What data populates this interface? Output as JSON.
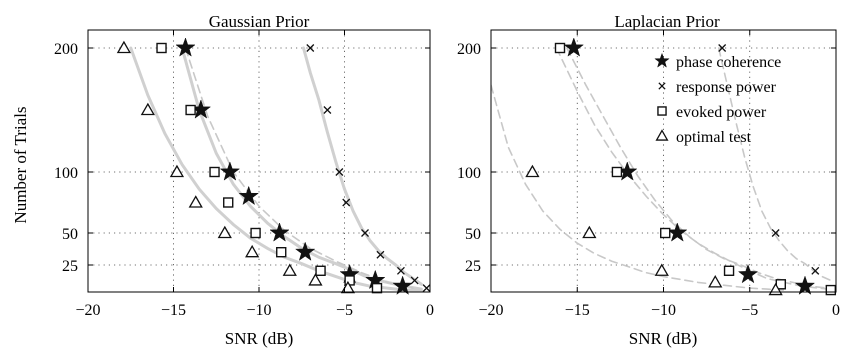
{
  "chart_data": [
    {
      "type": "scatter",
      "title": "Gaussian Prior",
      "xlabel": "SNR (dB)",
      "ylabel": "Number of Trials",
      "xlim": [
        -20,
        0
      ],
      "ylim": [
        11,
        200
      ],
      "x_ticks": [
        -20,
        -15,
        -10,
        -5,
        0
      ],
      "y_ticks": [
        25,
        50,
        100,
        200
      ],
      "grid": "dotted",
      "series": [
        {
          "name": "phase coherence",
          "marker": "star",
          "x": [
            -14.3,
            -13.4,
            -11.7,
            -10.6,
            -8.8,
            -7.3,
            -4.7,
            -3.2,
            -1.6
          ],
          "y": [
            200,
            150,
            100,
            80,
            50,
            35,
            20,
            17,
            14
          ]
        },
        {
          "name": "response power",
          "marker": "x",
          "x": [
            -7.0,
            -6.0,
            -5.3,
            -4.9,
            -3.8,
            -2.9,
            -1.7,
            -0.9,
            -0.2
          ],
          "y": [
            200,
            150,
            100,
            75,
            50,
            33,
            22,
            17,
            13
          ]
        },
        {
          "name": "evoked power",
          "marker": "square",
          "x": [
            -15.7,
            -14.0,
            -12.6,
            -11.8,
            -10.2,
            -8.7,
            -6.4,
            -4.7,
            -3.1
          ],
          "y": [
            200,
            150,
            100,
            75,
            50,
            35,
            22,
            17,
            13
          ]
        },
        {
          "name": "optimal test",
          "marker": "triangle",
          "x": [
            -17.9,
            -16.5,
            -14.8,
            -13.7,
            -12.0,
            -10.4,
            -8.2,
            -6.7,
            -4.8
          ],
          "y": [
            200,
            150,
            100,
            75,
            50,
            35,
            22,
            17,
            13
          ]
        }
      ],
      "fit_curves": [
        {
          "style": "solid",
          "color": "#d0d0d0",
          "x": [
            -17.5,
            -16.5,
            -15.5,
            -14.5,
            -13.5,
            -12.5,
            -11.5,
            -10.5,
            -9.5,
            -8.5,
            -7.5,
            -6.5,
            -5.5,
            -4.5,
            -3.5,
            -2.5,
            -1.5,
            -0.5
          ],
          "y": [
            200,
            162,
            131,
            106,
            86,
            70,
            57,
            46,
            38,
            31,
            26,
            22,
            19,
            16,
            14,
            13,
            12,
            11.5
          ]
        },
        {
          "style": "solid",
          "color": "#d0d0d0",
          "x": [
            -14.5,
            -13.5,
            -12.5,
            -11.5,
            -10.5,
            -9.5,
            -8.5,
            -7.5,
            -6.5,
            -5.5,
            -4.5,
            -3.5,
            -2.5,
            -1.5,
            -0.5
          ],
          "y": [
            200,
            150,
            115,
            90,
            72,
            58,
            47,
            38,
            31,
            26,
            22,
            18,
            16,
            14,
            12.5
          ]
        },
        {
          "style": "dashed",
          "color": "#c8c8c8",
          "x": [
            -14.3,
            -13.0,
            -11.5,
            -10.0,
            -8.5,
            -7.0,
            -5.5,
            -4.0,
            -2.5,
            -1.0
          ],
          "y": [
            200,
            145,
            100,
            72,
            52,
            38,
            28,
            21,
            16,
            13
          ]
        },
        {
          "style": "solid",
          "color": "#d0d0d0",
          "x": [
            -7.4,
            -7.0,
            -6.5,
            -6.0,
            -5.5,
            -5.0,
            -4.5,
            -4.0,
            -3.5,
            -3.0,
            -2.5,
            -2.0,
            -1.5,
            -1.0,
            -0.5
          ],
          "y": [
            200,
            180,
            158,
            132,
            108,
            86,
            68,
            54,
            44,
            36,
            30,
            25,
            21,
            18,
            15
          ]
        }
      ]
    },
    {
      "type": "scatter",
      "title": "Laplacian Prior",
      "xlabel": "SNR (dB)",
      "xlim": [
        -20,
        0
      ],
      "ylim": [
        11,
        200
      ],
      "x_ticks": [
        -20,
        -15,
        -10,
        -5,
        0
      ],
      "y_ticks": [
        25,
        50,
        100,
        200
      ],
      "grid": "dotted",
      "legend_position": "top-right",
      "legend_entries": [
        "phase coherence",
        "response power",
        "evoked power",
        "optimal test"
      ],
      "series": [
        {
          "name": "phase coherence",
          "marker": "star",
          "x": [
            -15.2,
            -12.1,
            -9.2,
            -5.1,
            -1.8
          ],
          "y": [
            200,
            100,
            50,
            20,
            14
          ]
        },
        {
          "name": "response power",
          "marker": "x",
          "x": [
            -6.6,
            -3.5,
            -1.2
          ],
          "y": [
            200,
            50,
            22
          ]
        },
        {
          "name": "evoked power",
          "marker": "square",
          "x": [
            -16.0,
            -12.7,
            -9.9,
            -6.2,
            -3.2,
            -0.3
          ],
          "y": [
            200,
            100,
            50,
            22,
            15,
            12
          ]
        },
        {
          "name": "optimal test",
          "marker": "triangle",
          "x": [
            -17.6,
            -14.3,
            -10.1,
            -7.0,
            -3.5
          ],
          "y": [
            100,
            50,
            22,
            16,
            12
          ]
        }
      ],
      "fit_curves": [
        {
          "style": "dashed",
          "color": "#c8c8c8",
          "x": [
            -20,
            -19,
            -18,
            -17,
            -16,
            -15,
            -14,
            -13,
            -12,
            -11,
            -10,
            -9,
            -8,
            -7,
            -6,
            -5,
            -4,
            -3
          ],
          "y": [
            170,
            120,
            90,
            68,
            53,
            42,
            34,
            28,
            24,
            21,
            19,
            17.5,
            16,
            15,
            14,
            13,
            12.5,
            12
          ]
        },
        {
          "style": "dashed",
          "color": "#c8c8c8",
          "x": [
            -16.2,
            -15,
            -14,
            -13,
            -12,
            -11,
            -10,
            -9,
            -8,
            -7,
            -6,
            -5,
            -4,
            -3,
            -2,
            -1,
            0
          ],
          "y": [
            200,
            165,
            138,
            116,
            97,
            80,
            65,
            52,
            42,
            34,
            27,
            22,
            18,
            16,
            14,
            13,
            12
          ]
        },
        {
          "style": "dashed",
          "color": "#c8c8c8",
          "x": [
            -15.6,
            -14.5,
            -13.5,
            -12.5,
            -11.5,
            -10.5,
            -9.5,
            -8.5,
            -7.5,
            -6.5,
            -5.5,
            -4.5,
            -3.5,
            -2.5,
            -1.5,
            -0.5
          ],
          "y": [
            200,
            170,
            145,
            120,
            97,
            77,
            60,
            47,
            37,
            30,
            25,
            21,
            18,
            16,
            14,
            13
          ]
        },
        {
          "style": "dashed",
          "color": "#c8c8c8",
          "x": [
            -6.8,
            -6.3,
            -5.8,
            -5.3,
            -4.8,
            -4.3,
            -3.8,
            -3.3,
            -2.8,
            -2.3,
            -1.8,
            -1.3,
            -0.8,
            -0.3
          ],
          "y": [
            200,
            170,
            140,
            112,
            88,
            68,
            54,
            44,
            36,
            30,
            26,
            22,
            19,
            17
          ]
        }
      ]
    }
  ]
}
